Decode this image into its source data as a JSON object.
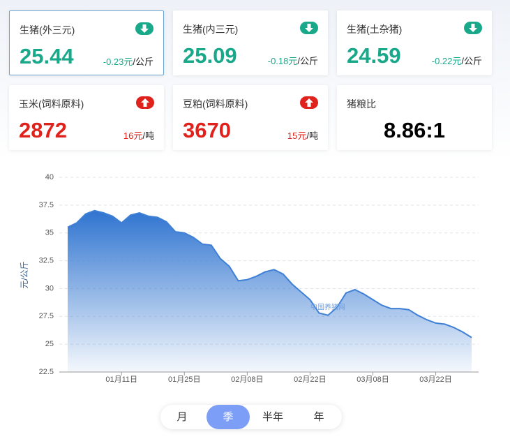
{
  "cards": [
    {
      "title": "生猪(外三元)",
      "value": "25.44",
      "change": "-0.23元",
      "unit": "/公斤",
      "trend": "down",
      "selected": true
    },
    {
      "title": "生猪(内三元)",
      "value": "25.09",
      "change": "-0.18元",
      "unit": "/公斤",
      "trend": "down"
    },
    {
      "title": "生猪(土杂猪)",
      "value": "24.59",
      "change": "-0.22元",
      "unit": "/公斤",
      "trend": "down"
    },
    {
      "title": "玉米(饲料原料)",
      "value": "2872",
      "change": "16元",
      "unit": "/吨",
      "trend": "up"
    },
    {
      "title": "豆粕(饲料原料)",
      "value": "3670",
      "change": "15元",
      "unit": "/吨",
      "trend": "up"
    },
    {
      "title": "猪粮比",
      "value": "8.86:1"
    }
  ],
  "chart_data": {
    "type": "area",
    "y_label": "元/公斤",
    "watermark": "中国养猪网",
    "color": "#3f80d6",
    "categories": [
      null,
      null,
      null,
      null,
      null,
      null,
      "01月11日",
      null,
      null,
      null,
      null,
      null,
      null,
      "01月25日",
      null,
      null,
      null,
      null,
      null,
      null,
      "02月08日",
      null,
      null,
      null,
      null,
      null,
      null,
      "02月22日",
      null,
      null,
      null,
      null,
      null,
      null,
      "03月08日",
      null,
      null,
      null,
      null,
      null,
      null,
      "03月22日",
      null,
      null,
      null,
      null
    ],
    "values": [
      35.5,
      35.9,
      36.7,
      37.0,
      36.8,
      36.5,
      35.9,
      36.6,
      36.8,
      36.5,
      36.4,
      36.0,
      35.1,
      35.0,
      34.6,
      34.0,
      33.9,
      32.7,
      32.0,
      30.7,
      30.8,
      31.1,
      31.5,
      31.7,
      31.3,
      30.4,
      29.7,
      29.0,
      27.8,
      27.6,
      28.3,
      29.6,
      29.9,
      29.5,
      29.0,
      28.5,
      28.2,
      28.2,
      28.1,
      27.6,
      27.2,
      26.9,
      26.8,
      26.5,
      26.1,
      25.6
    ],
    "ylim": [
      22.5,
      40
    ],
    "yticks": [
      22.5,
      25,
      27.5,
      30,
      32.5,
      35,
      37.5,
      40
    ],
    "grid": true
  },
  "tabs": {
    "items": [
      "月",
      "季",
      "半年",
      "年"
    ],
    "active": 1
  }
}
